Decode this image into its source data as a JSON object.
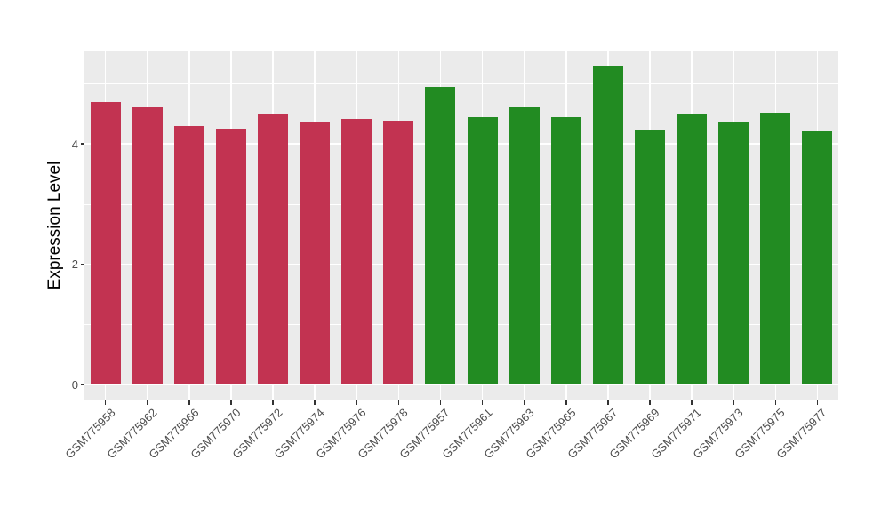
{
  "figure": {
    "background": "#FFFFFF"
  },
  "chart_data": {
    "type": "bar",
    "title": "",
    "xlabel": "",
    "ylabel": "Expression Level",
    "categories": [
      "GSM775958",
      "GSM775962",
      "GSM775966",
      "GSM775970",
      "GSM775972",
      "GSM775974",
      "GSM775976",
      "GSM775978",
      "GSM775957",
      "GSM775961",
      "GSM775963",
      "GSM775965",
      "GSM775967",
      "GSM775969",
      "GSM775971",
      "GSM775973",
      "GSM775975",
      "GSM775977"
    ],
    "values": [
      4.7,
      4.6,
      4.3,
      4.25,
      4.5,
      4.37,
      4.42,
      4.39,
      4.95,
      4.45,
      4.62,
      4.44,
      5.3,
      4.24,
      4.5,
      4.37,
      4.52,
      4.21
    ],
    "group_of": [
      0,
      0,
      0,
      0,
      0,
      0,
      0,
      0,
      1,
      1,
      1,
      1,
      1,
      1,
      1,
      1,
      1,
      1
    ],
    "groups": [
      {
        "name": "group-red",
        "color": "#C23351"
      },
      {
        "name": "group-green",
        "color": "#228B22"
      }
    ],
    "y_ticks": [
      0,
      2,
      4
    ],
    "y_minor_ticks": [
      1,
      3,
      5
    ],
    "ylim": [
      -0.26,
      5.55
    ],
    "grid": true,
    "legend_position": "none",
    "panel_bg": "#EBEBEB",
    "grid_color": "#FFFFFF",
    "tick_text_color": "#4D4D4D",
    "tick_mark_color": "#333333",
    "axis_title_color": "#000000"
  }
}
